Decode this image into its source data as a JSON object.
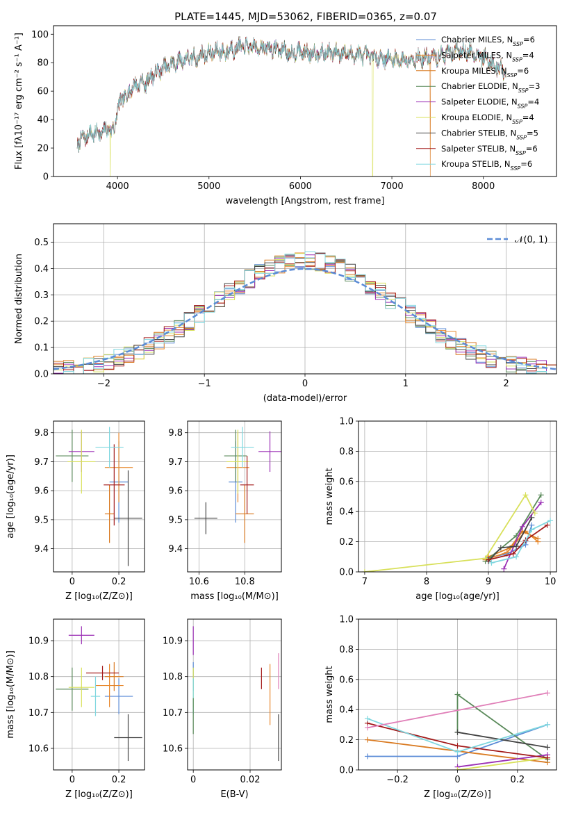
{
  "figure": {
    "title": "PLATE=1445, MJD=53062, FIBERID=0365, z=0.07"
  },
  "models": [
    {
      "name": "Chabrier MILES",
      "nssp": "6",
      "color": "#5b8bd6"
    },
    {
      "name": "Salpeter MILES",
      "nssp": "4",
      "color": "#e8892e"
    },
    {
      "name": "Kroupa MILES",
      "nssp": "6",
      "color": "#d97a21"
    },
    {
      "name": "Chabrier ELODIE",
      "nssp": "3",
      "color": "#5a8a5a"
    },
    {
      "name": "Salpeter ELODIE",
      "nssp": "4",
      "color": "#9b2fb5"
    },
    {
      "name": "Kroupa ELODIE",
      "nssp": "4",
      "color": "#d8e05a"
    },
    {
      "name": "Chabrier STELIB",
      "nssp": "5",
      "color": "#444444"
    },
    {
      "name": "Salpeter STELIB",
      "nssp": "6",
      "color": "#a31a1a"
    },
    {
      "name": "Kroupa STELIB",
      "nssp": "6",
      "color": "#7fd7df"
    }
  ],
  "chart_data": [
    {
      "id": "spectrum",
      "type": "line",
      "title": "PLATE=1445, MJD=53062, FIBERID=0365, z=0.07",
      "xlabel": "wavelength [Angstrom, rest frame]",
      "ylabel": "Flux [fλ10⁻¹⁷ erg cm⁻² s⁻¹ A⁻¹]",
      "xlim": [
        3300,
        8800
      ],
      "ylim": [
        0,
        106
      ],
      "xticks": [
        4000,
        5000,
        6000,
        7000,
        8000
      ],
      "yticks": [
        0,
        20,
        40,
        60,
        80,
        100
      ],
      "continuum": [
        [
          3560,
          24
        ],
        [
          3700,
          30
        ],
        [
          3850,
          31
        ],
        [
          3950,
          38
        ],
        [
          4050,
          55
        ],
        [
          4150,
          62
        ],
        [
          4300,
          68
        ],
        [
          4500,
          76
        ],
        [
          4700,
          82
        ],
        [
          4900,
          85
        ],
        [
          5100,
          88
        ],
        [
          5300,
          91
        ],
        [
          5500,
          91
        ],
        [
          5700,
          90
        ],
        [
          5900,
          88
        ],
        [
          6100,
          87
        ],
        [
          6300,
          87
        ],
        [
          6500,
          87
        ],
        [
          6700,
          85
        ],
        [
          6900,
          83
        ],
        [
          7100,
          82
        ],
        [
          7300,
          83
        ],
        [
          7500,
          84
        ],
        [
          7700,
          89
        ],
        [
          7900,
          87
        ],
        [
          8050,
          82
        ],
        [
          8180,
          76
        ],
        [
          8250,
          72
        ]
      ],
      "absorption_lines": [
        [
          3934,
          8
        ],
        [
          3968,
          8
        ],
        [
          4102,
          4
        ],
        [
          4300,
          5
        ],
        [
          4340,
          3
        ],
        [
          4861,
          4
        ],
        [
          5175,
          6
        ],
        [
          5270,
          3
        ],
        [
          5890,
          7
        ],
        [
          6563,
          3
        ]
      ],
      "spike_down": [
        {
          "model": "Kroupa ELODIE",
          "x": 3920
        },
        {
          "model": "Kroupa ELODIE",
          "x": 6790
        },
        {
          "model": "Kroupa MILES",
          "x": 7420
        }
      ]
    },
    {
      "id": "residuals",
      "type": "bar",
      "xlabel": "(data-model)/error",
      "ylabel": "Normed distribution",
      "xlim": [
        -2.5,
        2.5
      ],
      "ylim": [
        0,
        0.57
      ],
      "xticks": [
        -2,
        -1,
        0,
        1,
        2
      ],
      "yticks": [
        0.0,
        0.1,
        0.2,
        0.3,
        0.4,
        0.5
      ],
      "bin_width": 0.1,
      "reference_label": "𝒩(0, 1)",
      "reference_color": "#5b8bd6"
    },
    {
      "id": "age_vs_Z",
      "type": "scatter",
      "xlabel": "Z [log₁₀(Z/Z⊙)]",
      "ylabel": "age  [log₁₀(age/yr)]",
      "xlim": [
        -0.08,
        0.31
      ],
      "ylim": [
        9.32,
        9.84
      ],
      "xticks": [
        0.0,
        0.2
      ],
      "yticks": [
        9.4,
        9.5,
        9.6,
        9.7,
        9.8
      ],
      "points": [
        {
          "model": "Chabrier MILES",
          "x": 0.2,
          "y": 9.63,
          "xerr": 0.04,
          "yerr": 0.14
        },
        {
          "model": "Salpeter MILES",
          "x": 0.2,
          "y": 9.68,
          "xerr": 0.06,
          "yerr": 0.12
        },
        {
          "model": "Kroupa MILES",
          "x": 0.16,
          "y": 9.52,
          "xerr": 0.02,
          "yerr": 0.1
        },
        {
          "model": "Chabrier ELODIE",
          "x": 0.0,
          "y": 9.72,
          "xerr": 0.07,
          "yerr": 0.09
        },
        {
          "model": "Salpeter ELODIE",
          "x": 0.04,
          "y": 9.735,
          "xerr": 0.055,
          "yerr": 0.07
        },
        {
          "model": "Kroupa ELODIE",
          "x": 0.04,
          "y": 9.7,
          "xerr": 0.06,
          "yerr": 0.11
        },
        {
          "model": "Chabrier STELIB",
          "x": 0.24,
          "y": 9.505,
          "xerr": 0.06,
          "yerr": 0.165
        },
        {
          "model": "Salpeter STELIB",
          "x": 0.18,
          "y": 9.62,
          "xerr": 0.045,
          "yerr": 0.14
        },
        {
          "model": "Kroupa STELIB",
          "x": 0.16,
          "y": 9.75,
          "xerr": 0.06,
          "yerr": 0.07
        }
      ]
    },
    {
      "id": "age_vs_mass",
      "type": "scatter",
      "xlabel": "mass [log₁₀(M/M⊙)]",
      "xlim": [
        10.55,
        10.96
      ],
      "ylim": [
        9.32,
        9.84
      ],
      "xticks": [
        10.6,
        10.8
      ],
      "yticks": [
        9.4,
        9.5,
        9.6,
        9.7,
        9.8
      ],
      "points": [
        {
          "model": "Chabrier MILES",
          "x": 10.76,
          "y": 9.63,
          "xerr": 0.03,
          "yerr": 0.14
        },
        {
          "model": "Salpeter MILES",
          "x": 10.77,
          "y": 9.68,
          "xerr": 0.05,
          "yerr": 0.12
        },
        {
          "model": "Kroupa MILES",
          "x": 10.8,
          "y": 9.52,
          "xerr": 0.04,
          "yerr": 0.1
        },
        {
          "model": "Chabrier ELODIE",
          "x": 10.76,
          "y": 9.72,
          "xerr": 0.05,
          "yerr": 0.09
        },
        {
          "model": "Salpeter ELODIE",
          "x": 10.91,
          "y": 9.735,
          "xerr": 0.05,
          "yerr": 0.07
        },
        {
          "model": "Kroupa ELODIE",
          "x": 10.77,
          "y": 9.7,
          "xerr": 0.05,
          "yerr": 0.11
        },
        {
          "model": "Chabrier STELIB",
          "x": 10.63,
          "y": 9.505,
          "xerr": 0.05,
          "yerr": 0.055
        },
        {
          "model": "Salpeter STELIB",
          "x": 10.81,
          "y": 9.62,
          "xerr": 0.03,
          "yerr": 0.1
        },
        {
          "model": "Kroupa STELIB",
          "x": 10.79,
          "y": 9.75,
          "xerr": 0.05,
          "yerr": 0.07
        }
      ]
    },
    {
      "id": "weight_vs_age",
      "type": "line",
      "xlabel": "age  [log₁₀(age/yr)]",
      "ylabel": "mass weight",
      "xlim": [
        6.9,
        10.1
      ],
      "ylim": [
        0,
        1
      ],
      "xticks": [
        7,
        8,
        9,
        10
      ],
      "yticks": [
        0.0,
        0.2,
        0.4,
        0.6,
        0.8,
        1.0
      ],
      "series": [
        {
          "model": "Chabrier MILES",
          "x": [
            8.95,
            9.3,
            9.6,
            9.7
          ],
          "y": [
            0.09,
            0.12,
            0.18,
            0.31
          ]
        },
        {
          "model": "Salpeter MILES",
          "x": [
            8.95,
            9.3,
            9.6,
            9.8
          ],
          "y": [
            0.08,
            0.13,
            0.27,
            0.2
          ]
        },
        {
          "model": "Kroupa MILES",
          "x": [
            9.0,
            9.35,
            9.55,
            9.8
          ],
          "y": [
            0.1,
            0.16,
            0.27,
            0.22
          ]
        },
        {
          "model": "Chabrier ELODIE",
          "x": [
            8.95,
            9.45,
            9.85
          ],
          "y": [
            0.07,
            0.24,
            0.51
          ]
        },
        {
          "model": "Salpeter ELODIE",
          "x": [
            9.25,
            9.55,
            9.85
          ],
          "y": [
            0.02,
            0.3,
            0.46
          ]
        },
        {
          "model": "Kroupa ELODIE",
          "x": [
            7.0,
            8.95,
            9.6,
            9.75
          ],
          "y": [
            0.0,
            0.09,
            0.51,
            0.39
          ]
        },
        {
          "model": "Chabrier STELIB",
          "x": [
            9.0,
            9.2,
            9.45,
            9.7
          ],
          "y": [
            0.07,
            0.16,
            0.17,
            0.36
          ]
        },
        {
          "model": "Salpeter STELIB",
          "x": [
            9.0,
            9.4,
            9.6,
            9.95
          ],
          "y": [
            0.08,
            0.12,
            0.21,
            0.31
          ]
        },
        {
          "model": "Kroupa STELIB",
          "x": [
            9.05,
            9.45,
            9.7,
            10.0
          ],
          "y": [
            0.06,
            0.1,
            0.28,
            0.34
          ]
        }
      ]
    },
    {
      "id": "mass_vs_Z",
      "type": "scatter",
      "xlabel": "Z [log₁₀(Z/Z⊙)]",
      "ylabel": "mass [log₁₀(M/M⊙)]",
      "xlim": [
        -0.08,
        0.31
      ],
      "ylim": [
        10.54,
        10.96
      ],
      "xticks": [
        0.0,
        0.2
      ],
      "yticks": [
        10.6,
        10.7,
        10.8,
        10.9
      ],
      "points": [
        {
          "model": "Chabrier MILES",
          "x": 0.2,
          "y": 10.745,
          "xerr": 0.06,
          "yerr": 0.05
        },
        {
          "model": "Salpeter MILES",
          "x": 0.16,
          "y": 10.775,
          "xerr": 0.06,
          "yerr": 0.06
        },
        {
          "model": "Kroupa MILES",
          "x": 0.18,
          "y": 10.8,
          "xerr": 0.04,
          "yerr": 0.04
        },
        {
          "model": "Chabrier ELODIE",
          "x": 0.0,
          "y": 10.765,
          "xerr": 0.07,
          "yerr": 0.06
        },
        {
          "model": "Salpeter ELODIE",
          "x": 0.04,
          "y": 10.915,
          "xerr": 0.055,
          "yerr": 0.025
        },
        {
          "model": "Kroupa ELODIE",
          "x": 0.04,
          "y": 10.77,
          "xerr": 0.055,
          "yerr": 0.055
        },
        {
          "model": "Chabrier STELIB",
          "x": 0.24,
          "y": 10.63,
          "xerr": 0.06,
          "yerr": 0.065
        },
        {
          "model": "Salpeter STELIB",
          "x": 0.13,
          "y": 10.81,
          "xerr": 0.07,
          "yerr": 0.02
        },
        {
          "model": "Kroupa STELIB",
          "x": 0.1,
          "y": 10.745,
          "xerr": 0.02,
          "yerr": 0.055
        }
      ]
    },
    {
      "id": "mass_vs_ebv",
      "type": "scatter",
      "xlabel": "E(B-V)",
      "xlim": [
        -0.002,
        0.031
      ],
      "ylim": [
        10.54,
        10.96
      ],
      "xticks": [
        0.0,
        0.02
      ],
      "yticks": [
        10.6,
        10.7,
        10.8,
        10.9
      ],
      "points": [
        {
          "model": "Chabrier MILES",
          "x": 0.0,
          "y": 10.8,
          "yerr": 0.04
        },
        {
          "model": "Salpeter ELODIE",
          "x": 0.0,
          "y": 10.9,
          "yerr": 0.04
        },
        {
          "model": "Kroupa ELODIE",
          "x": 0.0,
          "y": 10.77,
          "yerr": 0.055
        },
        {
          "model": "Kroupa STELIB",
          "x": 0.0,
          "y": 10.745,
          "yerr": 0.05
        },
        {
          "model": "Chabrier ELODIE",
          "x": 0.0,
          "y": 10.69,
          "yerr": 0.05
        },
        {
          "model": "Salpeter STELIB",
          "x": 0.024,
          "y": 10.795,
          "yerr": 0.03
        },
        {
          "model": "Salpeter MILES",
          "x": 0.027,
          "y": 10.75,
          "yerr": 0.085
        },
        {
          "model": "Chabrier STELIB",
          "x": 0.03,
          "y": 10.63,
          "yerr": 0.065
        },
        {
          "model": "pink",
          "x": 0.03,
          "y": 10.815,
          "yerr": 0.05
        }
      ]
    },
    {
      "id": "weight_vs_Z",
      "type": "line",
      "xlabel": "Z [log₁₀(Z/Z⊙)]",
      "ylabel": "mass weight",
      "xlim": [
        -0.33,
        0.33
      ],
      "ylim": [
        0,
        1
      ],
      "xticks": [
        -0.2,
        0.0,
        0.2
      ],
      "yticks": [
        0.0,
        0.2,
        0.4,
        0.6,
        0.8,
        1.0
      ],
      "series": [
        {
          "model": "Chabrier MILES",
          "x": [
            -0.3,
            0.0,
            0.3
          ],
          "y": [
            0.09,
            0.09,
            0.3
          ]
        },
        {
          "model": "Kroupa MILES",
          "x": [
            -0.3,
            0.3
          ],
          "y": [
            0.2,
            0.05
          ]
        },
        {
          "model": "Chabrier ELODIE",
          "x": [
            0.0,
            0.0,
            0.3
          ],
          "y": [
            0.25,
            0.5,
            0.07
          ]
        },
        {
          "model": "Salpeter ELODIE",
          "x": [
            0.0,
            0.3
          ],
          "y": [
            0.02,
            0.1
          ]
        },
        {
          "model": "Kroupa ELODIE",
          "x": [
            0.0,
            0.3
          ],
          "y": [
            0.0,
            0.08
          ]
        },
        {
          "model": "Chabrier STELIB",
          "x": [
            0.0,
            0.3
          ],
          "y": [
            0.25,
            0.15
          ]
        },
        {
          "model": "Salpeter STELIB",
          "x": [
            -0.3,
            0.0,
            0.3
          ],
          "y": [
            0.31,
            0.16,
            0.08
          ]
        },
        {
          "model": "Kroupa STELIB",
          "x": [
            -0.3,
            0.0,
            0.3
          ],
          "y": [
            0.34,
            0.12,
            0.3
          ]
        },
        {
          "model": "pink",
          "x": [
            -0.3,
            0.3
          ],
          "y": [
            0.28,
            0.51
          ]
        }
      ]
    }
  ]
}
